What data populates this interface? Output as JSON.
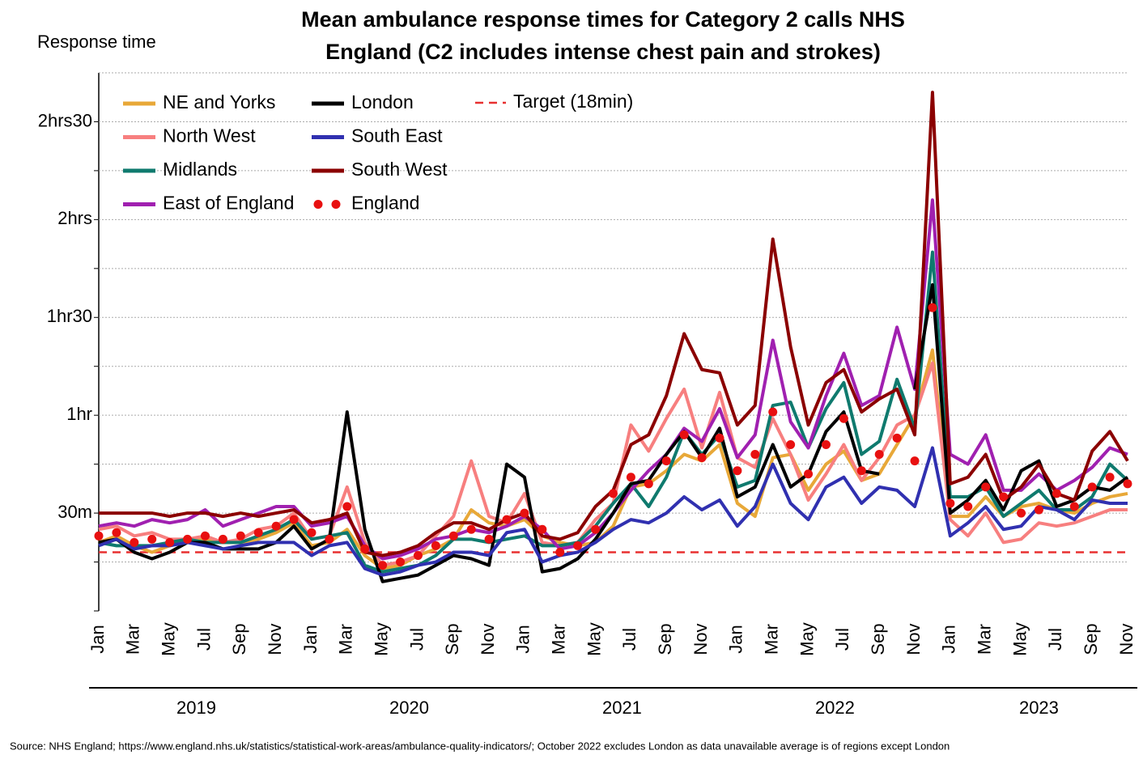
{
  "chart_data": {
    "type": "line",
    "title": [
      "Mean ambulance response times for Category 2 calls NHS",
      "England (C2 includes intense chest pain and strokes)"
    ],
    "y_label": "Response time",
    "source": "Source: NHS England; https://www.england.nhs.uk/statistics/statistical-work-areas/ambulance-quality-indicators/; October 2022 excludes London as data unavailable average is of regions except London",
    "categories": [
      "Jan",
      null,
      "Mar",
      null,
      "May",
      null,
      "Jul",
      null,
      "Sep",
      null,
      "Nov",
      null,
      "Jan",
      null,
      "Mar",
      null,
      "May",
      null,
      "Jul",
      null,
      "Sep",
      null,
      "Nov",
      null,
      "Jan",
      null,
      "Mar",
      null,
      "May",
      null,
      "Jul",
      null,
      "Sep",
      null,
      "Nov",
      null,
      "Jan",
      null,
      "Mar",
      null,
      "May",
      null,
      "Jul",
      null,
      "Sep",
      null,
      "Nov",
      null,
      "Jan",
      null,
      "Mar",
      null,
      "May",
      null,
      "Jul",
      null,
      "Sep",
      null,
      "Nov"
    ],
    "years": [
      "2019",
      "2020",
      "2021",
      "2022",
      "2023"
    ],
    "ylim": [
      0,
      165
    ],
    "yticks": [
      {
        "value": 30,
        "label": "30m"
      },
      {
        "value": 60,
        "label": "1hr"
      },
      {
        "value": 90,
        "label": "1hr30"
      },
      {
        "value": 120,
        "label": "2hrs"
      },
      {
        "value": 150,
        "label": "2hrs30"
      }
    ],
    "yminor_ticks": [
      15,
      45,
      75,
      105,
      135
    ],
    "grid": true,
    "target": {
      "name": "Target (18min)",
      "value": 18,
      "color": "#e83030"
    },
    "series": [
      {
        "name": "NE and Yorks",
        "color": "#e8a838",
        "style": "line",
        "values": [
          21,
          23,
          20,
          18,
          20,
          22,
          22,
          21,
          21,
          22,
          24,
          27,
          20,
          21,
          25,
          17,
          13,
          14,
          17,
          19,
          22,
          31,
          27,
          26,
          28,
          23,
          21,
          20,
          21,
          26,
          38,
          39,
          43,
          48,
          46,
          51,
          33,
          29,
          47,
          48,
          37,
          45,
          49,
          40,
          42,
          51,
          60,
          80,
          29,
          29,
          35,
          29,
          32,
          33,
          31,
          30,
          33,
          35,
          36
        ]
      },
      {
        "name": "North West",
        "color": "#f77f7f",
        "style": "line",
        "values": [
          25,
          26,
          23,
          24,
          22,
          22,
          23,
          21,
          22,
          25,
          26,
          30,
          22,
          23,
          38,
          21,
          14,
          15,
          17,
          23,
          29,
          46,
          29,
          27,
          36,
          21,
          20,
          21,
          28,
          33,
          57,
          49,
          59,
          68,
          50,
          67,
          47,
          44,
          59,
          48,
          34,
          42,
          51,
          40,
          47,
          57,
          60,
          76,
          28,
          23,
          30,
          21,
          22,
          27,
          26,
          27,
          29,
          31,
          31
        ]
      },
      {
        "name": "Midlands",
        "color": "#0f7a6e",
        "style": "line",
        "values": [
          21,
          20,
          20,
          20,
          21,
          22,
          21,
          21,
          21,
          23,
          25,
          28,
          22,
          23,
          24,
          14,
          12,
          13,
          14,
          17,
          22,
          22,
          21,
          22,
          23,
          20,
          20,
          21,
          26,
          33,
          39,
          32,
          41,
          55,
          48,
          54,
          38,
          40,
          63,
          64,
          50,
          62,
          70,
          48,
          52,
          71,
          56,
          110,
          35,
          35,
          38,
          29,
          33,
          37,
          31,
          31,
          35,
          45,
          40
        ]
      },
      {
        "name": "East of England",
        "color": "#a020b0",
        "style": "line",
        "values": [
          26,
          27,
          26,
          28,
          27,
          28,
          31,
          26,
          28,
          30,
          32,
          32,
          26,
          27,
          29,
          20,
          16,
          17,
          19,
          22,
          23,
          25,
          24,
          26,
          29,
          25,
          19,
          20,
          24,
          30,
          37,
          43,
          48,
          56,
          52,
          62,
          47,
          54,
          83,
          58,
          50,
          66,
          79,
          63,
          66,
          87,
          68,
          126,
          48,
          45,
          54,
          37,
          37,
          42,
          37,
          40,
          44,
          50,
          48
        ]
      },
      {
        "name": "London",
        "color": "#000000",
        "style": "line",
        "values": [
          21,
          22,
          18,
          16,
          18,
          21,
          21,
          19,
          19,
          19,
          21,
          26,
          19,
          22,
          61,
          25,
          9,
          10,
          11,
          14,
          17,
          16,
          14,
          45,
          41,
          12,
          13,
          16,
          22,
          30,
          39,
          40,
          48,
          55,
          47,
          56,
          35,
          38,
          51,
          38,
          42,
          55,
          61,
          43,
          42,
          null,
          68,
          100,
          30,
          34,
          40,
          31,
          43,
          46,
          32,
          34,
          38,
          37,
          41
        ]
      },
      {
        "name": "South East",
        "color": "#3030b0",
        "style": "line",
        "values": [
          20,
          22,
          19,
          20,
          20,
          21,
          20,
          19,
          20,
          21,
          21,
          21,
          17,
          20,
          21,
          13,
          11,
          12,
          14,
          15,
          18,
          18,
          17,
          24,
          25,
          15,
          17,
          18,
          21,
          25,
          28,
          27,
          30,
          35,
          31,
          34,
          26,
          32,
          45,
          33,
          28,
          38,
          41,
          33,
          38,
          37,
          32,
          50,
          23,
          27,
          32,
          25,
          26,
          32,
          31,
          28,
          34,
          33,
          33
        ]
      },
      {
        "name": "South West",
        "color": "#8b0000",
        "style": "line",
        "values": [
          30,
          30,
          30,
          30,
          29,
          30,
          30,
          29,
          30,
          29,
          30,
          31,
          27,
          28,
          30,
          18,
          17,
          18,
          20,
          24,
          27,
          27,
          25,
          28,
          30,
          23,
          22,
          24,
          32,
          37,
          51,
          54,
          66,
          85,
          74,
          73,
          57,
          63,
          114,
          81,
          57,
          70,
          74,
          61,
          65,
          68,
          54,
          159,
          39,
          41,
          48,
          34,
          38,
          45,
          36,
          34,
          49,
          55,
          46
        ]
      },
      {
        "name": "England",
        "color": "#e81010",
        "style": "dots",
        "values": [
          23,
          24,
          21,
          22,
          21,
          22,
          23,
          22,
          23,
          24,
          26,
          28,
          24,
          22,
          32,
          19,
          14,
          15,
          17,
          20,
          23,
          25,
          22,
          28,
          30,
          25,
          18,
          20,
          25,
          36,
          41,
          39,
          46,
          54,
          47,
          53,
          43,
          48,
          61,
          51,
          42,
          51,
          59,
          43,
          48,
          53,
          46,
          93,
          33,
          32,
          38,
          35,
          30,
          31,
          36,
          32,
          38,
          41,
          39
        ]
      }
    ]
  }
}
